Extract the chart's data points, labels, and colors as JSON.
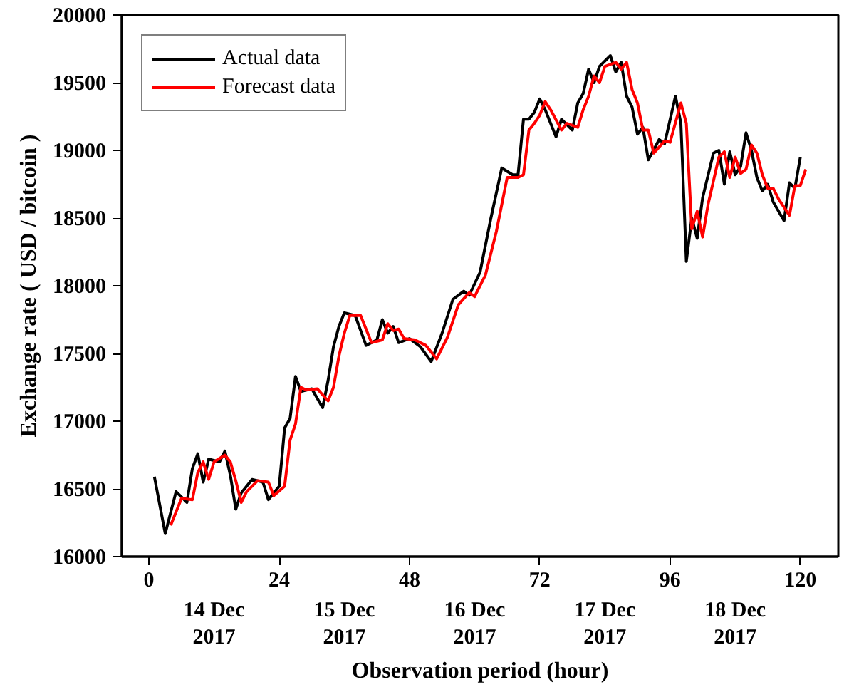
{
  "chart_data": {
    "type": "line",
    "xlabel": "Observation period (hour)",
    "ylabel": "Exchange rate ( USD / bitcoin )",
    "xlim": [
      -5,
      127
    ],
    "ylim": [
      16000,
      20000
    ],
    "xticks": [
      0,
      24,
      48,
      72,
      96,
      120
    ],
    "yticks": [
      16000,
      16500,
      17000,
      17500,
      18000,
      18500,
      19000,
      19500,
      20000
    ],
    "grid": false,
    "legend": "top left",
    "marker": "none",
    "line_style": "solid",
    "annotations": [
      "14 Dec\n2017",
      "15 Dec\n2017",
      "16 Dec\n2017",
      "17 Dec\n2017",
      "18 Dec\n2017"
    ],
    "series": [
      {
        "name": "Actual data",
        "color": "#000000",
        "x": [
          1,
          3,
          5,
          7,
          8,
          9,
          10,
          11,
          13,
          14,
          15,
          16,
          17,
          19,
          21,
          22,
          24,
          25,
          26,
          27,
          28,
          30,
          32,
          33,
          34,
          35,
          36,
          38,
          40,
          42,
          43,
          44,
          45,
          46,
          48,
          50,
          52,
          54,
          56,
          58,
          59,
          61,
          63,
          65,
          67,
          68,
          69,
          70,
          71,
          72,
          73,
          75,
          76,
          78,
          79,
          80,
          81,
          82,
          83,
          85,
          86,
          87,
          88,
          89,
          90,
          91,
          92,
          94,
          95,
          97,
          98,
          99,
          100,
          101,
          102,
          104,
          105,
          106,
          107,
          108,
          109,
          110,
          111,
          112,
          113,
          114,
          115,
          117,
          118,
          119,
          120
        ],
        "values": [
          16590,
          16170,
          16480,
          16400,
          16650,
          16760,
          16550,
          16720,
          16700,
          16780,
          16600,
          16350,
          16470,
          16570,
          16550,
          16420,
          16520,
          16950,
          17020,
          17330,
          17220,
          17240,
          17100,
          17300,
          17550,
          17700,
          17800,
          17780,
          17560,
          17600,
          17750,
          17650,
          17700,
          17580,
          17610,
          17550,
          17440,
          17650,
          17900,
          17960,
          17930,
          18100,
          18500,
          18870,
          18820,
          18820,
          19230,
          19230,
          19280,
          19380,
          19300,
          19100,
          19230,
          19150,
          19350,
          19420,
          19600,
          19500,
          19620,
          19700,
          19580,
          19650,
          19400,
          19320,
          19120,
          19170,
          18930,
          19080,
          19050,
          19400,
          19200,
          18180,
          18500,
          18350,
          18650,
          18980,
          19000,
          18750,
          18990,
          18820,
          18880,
          19130,
          19000,
          18800,
          18700,
          18750,
          18620,
          18480,
          18760,
          18720,
          18950
        ]
      },
      {
        "name": "Forecast data",
        "color": "#ff0000",
        "x": [
          4,
          6,
          8,
          9,
          10,
          11,
          12,
          14,
          15,
          16,
          17,
          18,
          20,
          22,
          23,
          25,
          26,
          27,
          28,
          29,
          31,
          33,
          34,
          35,
          36,
          37,
          39,
          41,
          43,
          44,
          45,
          46,
          47,
          49,
          51,
          53,
          55,
          57,
          59,
          60,
          62,
          64,
          66,
          68,
          69,
          70,
          71,
          72,
          73,
          74,
          76,
          77,
          79,
          80,
          81,
          82,
          83,
          84,
          86,
          87,
          88,
          89,
          90,
          91,
          92,
          93,
          95,
          96,
          98,
          99,
          100,
          101,
          102,
          103,
          105,
          106,
          107,
          108,
          109,
          110,
          111,
          112,
          113,
          114,
          115,
          116,
          118,
          119,
          120,
          121
        ],
        "values": [
          16230,
          16430,
          16420,
          16620,
          16700,
          16570,
          16700,
          16750,
          16700,
          16560,
          16400,
          16480,
          16560,
          16550,
          16450,
          16520,
          16860,
          16980,
          17250,
          17230,
          17240,
          17150,
          17250,
          17480,
          17650,
          17780,
          17780,
          17580,
          17600,
          17720,
          17670,
          17680,
          17610,
          17600,
          17560,
          17460,
          17620,
          17860,
          17950,
          17920,
          18080,
          18400,
          18800,
          18800,
          18820,
          19150,
          19200,
          19260,
          19360,
          19300,
          19150,
          19200,
          19170,
          19300,
          19400,
          19550,
          19500,
          19620,
          19650,
          19600,
          19650,
          19450,
          19350,
          19150,
          19150,
          18980,
          19070,
          19060,
          19350,
          19200,
          18420,
          18550,
          18360,
          18600,
          18950,
          18990,
          18800,
          18950,
          18830,
          18860,
          19040,
          18980,
          18820,
          18720,
          18720,
          18640,
          18520,
          18740,
          18740,
          18860
        ]
      }
    ]
  }
}
